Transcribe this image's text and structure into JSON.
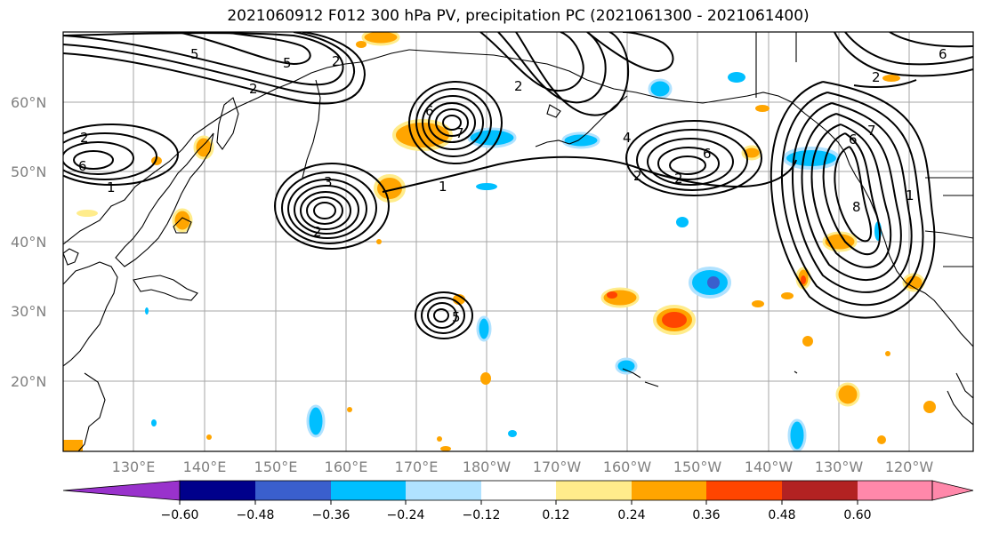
{
  "title": "2021060912 F012 300 hPa PV, precipitation PC (2021061300 - 2021061400)",
  "map": {
    "lat_labels": [
      "60°N",
      "50°N",
      "40°N",
      "30°N",
      "20°N"
    ],
    "lon_labels": [
      "130°E",
      "140°E",
      "150°E",
      "160°E",
      "170°E",
      "180°W",
      "170°W",
      "160°W",
      "150°W",
      "140°W",
      "130°W",
      "120°W"
    ],
    "pv_contour_labels": [
      "2",
      "6",
      "2",
      "5",
      "2",
      "4",
      "6",
      "2",
      "1",
      "6",
      "2",
      "7",
      "2",
      "5",
      "1",
      "6",
      "7",
      "8",
      "3",
      "1",
      "2",
      "5",
      "2",
      "6"
    ],
    "contour_color": "#000000",
    "coast_color": "#000000",
    "grid_color": "#808080"
  },
  "colorbar": {
    "tick_labels": [
      "−0.60",
      "−0.48",
      "−0.36",
      "−0.24",
      "−0.12",
      "0.12",
      "0.24",
      "0.36",
      "0.48",
      "0.60"
    ],
    "colors": [
      "#9932cc",
      "#00008b",
      "#3a5fcd",
      "#00bfff",
      "#b0e2ff",
      "#ffffff",
      "#ffec8b",
      "#ffa500",
      "#ff4500",
      "#b22222",
      "#ff88aa"
    ]
  }
}
